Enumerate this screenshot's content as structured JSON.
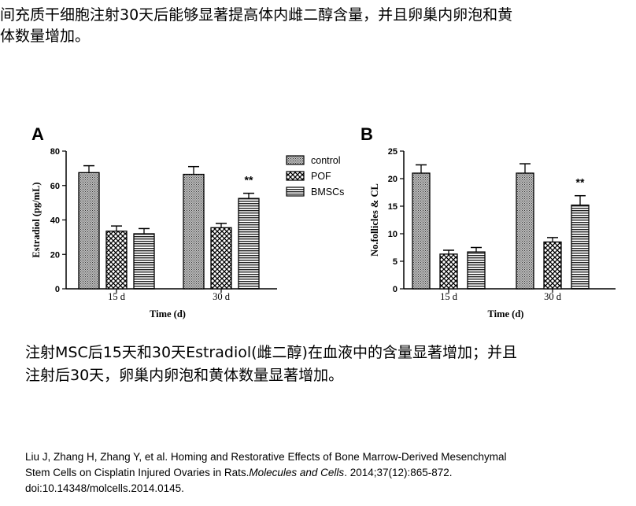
{
  "top_text": {
    "line1": "间充质干细胞注射30天后能够显著提高体内雌二醇含量，并且卵巢内卵泡和黄",
    "line2": "体数量增加。"
  },
  "caption": {
    "line1": "注射MSC后15天和30天Estradiol(雌二醇)在血液中的含量显著增加；并且",
    "line2": "注射后30天，卵巢内卵泡和黄体数量显著增加。"
  },
  "citation": {
    "line1": "Liu J, Zhang H, Zhang Y, et al. Homing and Restorative Effects of Bone Marrow-Derived Mesenchymal",
    "line2_plain": "Stem Cells on Cisplatin Injured Ovaries in Rats.",
    "journal": "Molecules and Cells",
    "line2_rest": ". 2014;37(12):865-872.",
    "line3": "doi:10.14348/molcells.2014.0145."
  },
  "legend": [
    "control",
    "POF",
    "BMSCs"
  ],
  "chart_data": [
    {
      "type": "bar",
      "panel_label": "A",
      "categories": [
        "15 d",
        "30 d"
      ],
      "series": [
        {
          "name": "control",
          "values": [
            67.5,
            66.5
          ],
          "errors": [
            4,
            4.5
          ]
        },
        {
          "name": "POF",
          "values": [
            33.5,
            35.5
          ],
          "errors": [
            3,
            2.5
          ]
        },
        {
          "name": "BMSCs",
          "values": [
            32,
            52.5
          ],
          "errors": [
            3,
            3
          ]
        }
      ],
      "ylabel": "Estradiol (pg/mL)",
      "xlabel": "Time (d)",
      "ylim": [
        0,
        80
      ],
      "yticks": [
        0,
        20,
        40,
        60,
        80
      ],
      "annotations": [
        {
          "category": "30 d",
          "series": "BMSCs",
          "text": "**"
        }
      ]
    },
    {
      "type": "bar",
      "panel_label": "B",
      "categories": [
        "15 d",
        "30 d"
      ],
      "series": [
        {
          "name": "control",
          "values": [
            21,
            21
          ],
          "errors": [
            1.5,
            1.7
          ]
        },
        {
          "name": "POF",
          "values": [
            6.3,
            8.5
          ],
          "errors": [
            0.7,
            0.8
          ]
        },
        {
          "name": "BMSCs",
          "values": [
            6.7,
            15.2
          ],
          "errors": [
            0.8,
            1.7
          ]
        }
      ],
      "ylabel": "No.follicles & CL",
      "xlabel": "Time (d)",
      "ylim": [
        0,
        25
      ],
      "yticks": [
        0,
        5,
        10,
        15,
        20,
        25
      ],
      "annotations": [
        {
          "category": "30 d",
          "series": "BMSCs",
          "text": "**"
        }
      ]
    }
  ]
}
